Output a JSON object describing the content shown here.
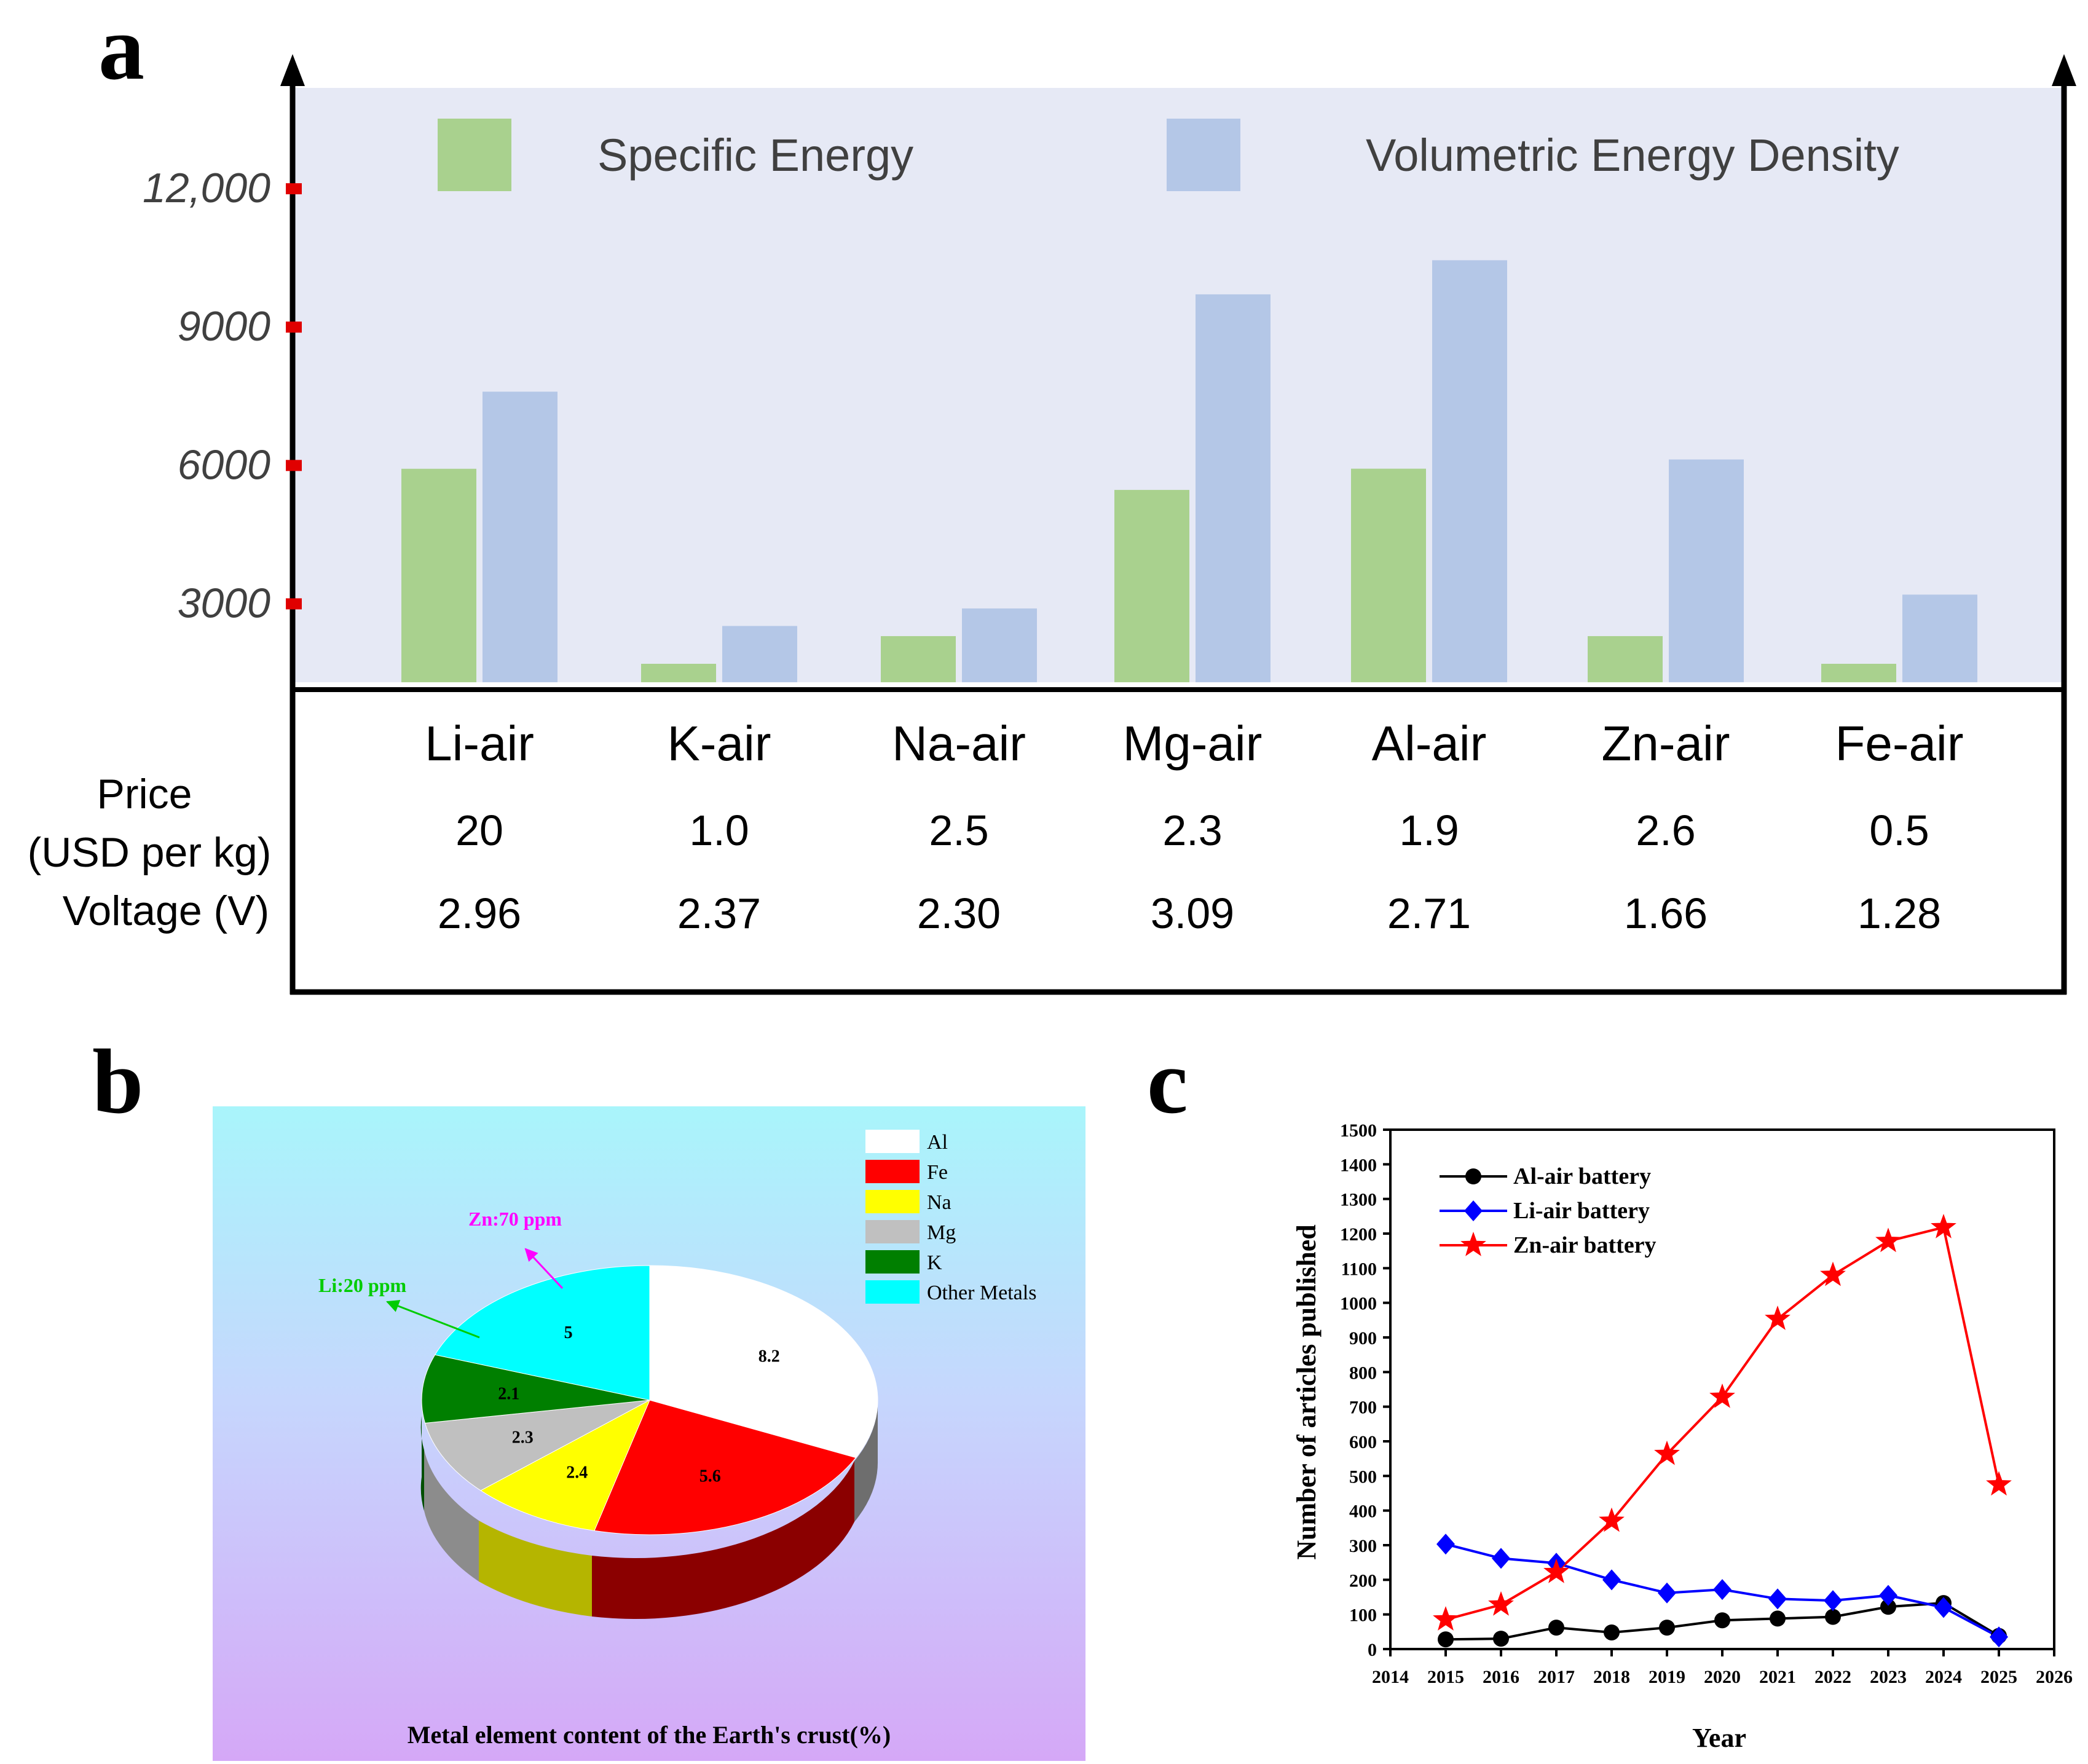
{
  "figure": {
    "panel_labels": [
      "a",
      "b",
      "c"
    ]
  },
  "chart_data": [
    {
      "panel": "a",
      "type": "bar",
      "categories": [
        "Li-air",
        "K-air",
        "Na-air",
        "Mg-air",
        "Al-air",
        "Zn-air",
        "Fe-air"
      ],
      "series": [
        {
          "name": "Specific Energy",
          "color": "#a9d18e",
          "values": [
            5928,
            1700,
            2300,
            5470,
            5930,
            2300,
            1700
          ]
        },
        {
          "name": "Volumetric Energy Density",
          "color": "#b4c7e7",
          "values": [
            7600,
            2520,
            2900,
            9710,
            10450,
            6130,
            3200
          ]
        }
      ],
      "yticks": [
        "3000",
        "6000",
        "9000",
        "12,000"
      ],
      "ytick_values": [
        3000,
        6000,
        9000,
        12000
      ],
      "ylim": [
        1300,
        14200
      ],
      "background": "#e6e9f5",
      "table": [
        {
          "label_lines": [
            "Price",
            "(USD per kg)"
          ],
          "values": [
            "20",
            "1.0",
            "2.5",
            "2.3",
            "1.9",
            "2.6",
            "0.5"
          ]
        },
        {
          "label_lines": [
            "Voltage (V)"
          ],
          "values": [
            "2.96",
            "2.37",
            "2.30",
            "3.09",
            "2.71",
            "1.66",
            "1.28"
          ]
        }
      ]
    },
    {
      "panel": "b",
      "type": "pie",
      "title": "Metal element content of the Earth's crust(%)",
      "slices": [
        {
          "label": "Al",
          "value": 8.2,
          "value_text": "8.2",
          "color": "#ffffff"
        },
        {
          "label": "Fe",
          "value": 5.6,
          "value_text": "5.6",
          "color": "#ff0000"
        },
        {
          "label": "Na",
          "value": 2.4,
          "value_text": "2.4",
          "color": "#ffff00"
        },
        {
          "label": "Mg",
          "value": 2.3,
          "value_text": "2.3",
          "color": "#c0c0c0"
        },
        {
          "label": "K",
          "value": 2.1,
          "value_text": "2.1",
          "color": "#007f00"
        },
        {
          "label": "Other Metals",
          "value": 5.0,
          "value_text": "5",
          "color": "#00ffff"
        }
      ],
      "annotations": [
        {
          "text": "Zn:70 ppm",
          "color": "#ff00ff"
        },
        {
          "text": "Li:20 ppm",
          "color": "#00cc00"
        }
      ],
      "legend_position": "top-right"
    },
    {
      "panel": "c",
      "type": "line",
      "xlabel": "Year",
      "ylabel": "Number of articles published",
      "xlim": [
        2014,
        2026
      ],
      "ylim": [
        0,
        1500
      ],
      "xticks": [
        2014,
        2015,
        2016,
        2017,
        2018,
        2019,
        2020,
        2021,
        2022,
        2023,
        2024,
        2025,
        2026
      ],
      "yticks": [
        0,
        100,
        200,
        300,
        400,
        500,
        600,
        700,
        800,
        900,
        1000,
        1100,
        1200,
        1300,
        1400,
        1500
      ],
      "x": [
        2015,
        2016,
        2017,
        2018,
        2019,
        2020,
        2021,
        2022,
        2023,
        2024,
        2025
      ],
      "series": [
        {
          "name": "Al-air battery",
          "color": "#000000",
          "marker": "circle",
          "values": [
            28,
            30,
            62,
            48,
            62,
            83,
            88,
            93,
            122,
            133,
            38
          ]
        },
        {
          "name": "Li-air battery",
          "color": "#0000ff",
          "marker": "diamond",
          "values": [
            303,
            262,
            248,
            200,
            162,
            172,
            145,
            140,
            155,
            120,
            35
          ]
        },
        {
          "name": "Zn-air battery",
          "color": "#ff0000",
          "marker": "star",
          "values": [
            85,
            128,
            222,
            370,
            563,
            728,
            953,
            1080,
            1178,
            1218,
            475
          ]
        }
      ],
      "legend_position": "top-left"
    }
  ]
}
